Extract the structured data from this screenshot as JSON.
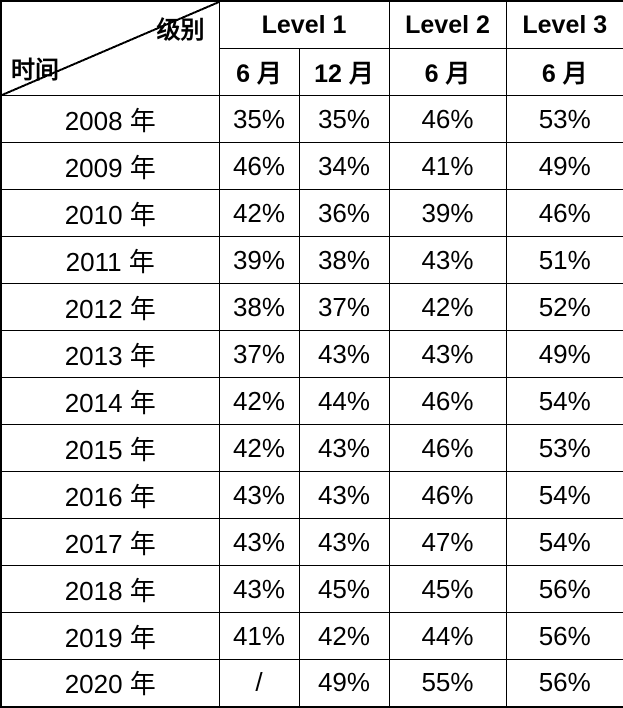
{
  "table": {
    "corner": {
      "column_axis_label": "级别",
      "row_axis_label": "时间"
    },
    "groups": [
      {
        "label": "Level 1",
        "span": 2
      },
      {
        "label": "Level 2",
        "span": 1
      },
      {
        "label": "Level 3",
        "span": 1
      }
    ],
    "subheaders": [
      "6 月",
      "12 月",
      "6 月",
      "6 月"
    ],
    "rows": [
      {
        "year": "2008 年",
        "values": [
          "35%",
          "35%",
          "46%",
          "53%"
        ]
      },
      {
        "year": "2009 年",
        "values": [
          "46%",
          "34%",
          "41%",
          "49%"
        ]
      },
      {
        "year": "2010 年",
        "values": [
          "42%",
          "36%",
          "39%",
          "46%"
        ]
      },
      {
        "year": "2011 年",
        "values": [
          "39%",
          "38%",
          "43%",
          "51%"
        ]
      },
      {
        "year": "2012 年",
        "values": [
          "38%",
          "37%",
          "42%",
          "52%"
        ]
      },
      {
        "year": "2013 年",
        "values": [
          "37%",
          "43%",
          "43%",
          "49%"
        ]
      },
      {
        "year": "2014 年",
        "values": [
          "42%",
          "44%",
          "46%",
          "54%"
        ]
      },
      {
        "year": "2015 年",
        "values": [
          "42%",
          "43%",
          "46%",
          "53%"
        ]
      },
      {
        "year": "2016 年",
        "values": [
          "43%",
          "43%",
          "46%",
          "54%"
        ]
      },
      {
        "year": "2017 年",
        "values": [
          "43%",
          "43%",
          "47%",
          "54%"
        ]
      },
      {
        "year": "2018 年",
        "values": [
          "43%",
          "45%",
          "45%",
          "56%"
        ]
      },
      {
        "year": "2019 年",
        "values": [
          "41%",
          "42%",
          "44%",
          "56%"
        ]
      },
      {
        "year": "2020 年",
        "values": [
          "/",
          "49%",
          "55%",
          "56%"
        ]
      }
    ]
  },
  "colors": {
    "border": "#000000",
    "text": "#000000",
    "background": "#ffffff"
  },
  "chart_data": {
    "type": "table",
    "title": "",
    "corner_labels": {
      "top_right": "级别",
      "bottom_left": "时间"
    },
    "column_groups": [
      {
        "label": "Level 1",
        "columns": [
          "6 月",
          "12 月"
        ]
      },
      {
        "label": "Level 2",
        "columns": [
          "6 月"
        ]
      },
      {
        "label": "Level 3",
        "columns": [
          "6 月"
        ]
      }
    ],
    "row_header": "时间",
    "rows": [
      {
        "label": "2008 年",
        "values": [
          "35%",
          "35%",
          "46%",
          "53%"
        ]
      },
      {
        "label": "2009 年",
        "values": [
          "46%",
          "34%",
          "41%",
          "49%"
        ]
      },
      {
        "label": "2010 年",
        "values": [
          "42%",
          "36%",
          "39%",
          "46%"
        ]
      },
      {
        "label": "2011 年",
        "values": [
          "39%",
          "38%",
          "43%",
          "51%"
        ]
      },
      {
        "label": "2012 年",
        "values": [
          "38%",
          "37%",
          "42%",
          "52%"
        ]
      },
      {
        "label": "2013 年",
        "values": [
          "37%",
          "43%",
          "43%",
          "49%"
        ]
      },
      {
        "label": "2014 年",
        "values": [
          "42%",
          "44%",
          "46%",
          "54%"
        ]
      },
      {
        "label": "2015 年",
        "values": [
          "42%",
          "43%",
          "46%",
          "53%"
        ]
      },
      {
        "label": "2016 年",
        "values": [
          "43%",
          "43%",
          "46%",
          "54%"
        ]
      },
      {
        "label": "2017 年",
        "values": [
          "43%",
          "43%",
          "47%",
          "54%"
        ]
      },
      {
        "label": "2018 年",
        "values": [
          "43%",
          "45%",
          "45%",
          "56%"
        ]
      },
      {
        "label": "2019 年",
        "values": [
          "41%",
          "42%",
          "44%",
          "56%"
        ]
      },
      {
        "label": "2020 年",
        "values": [
          "/",
          "49%",
          "55%",
          "56%"
        ]
      }
    ]
  }
}
